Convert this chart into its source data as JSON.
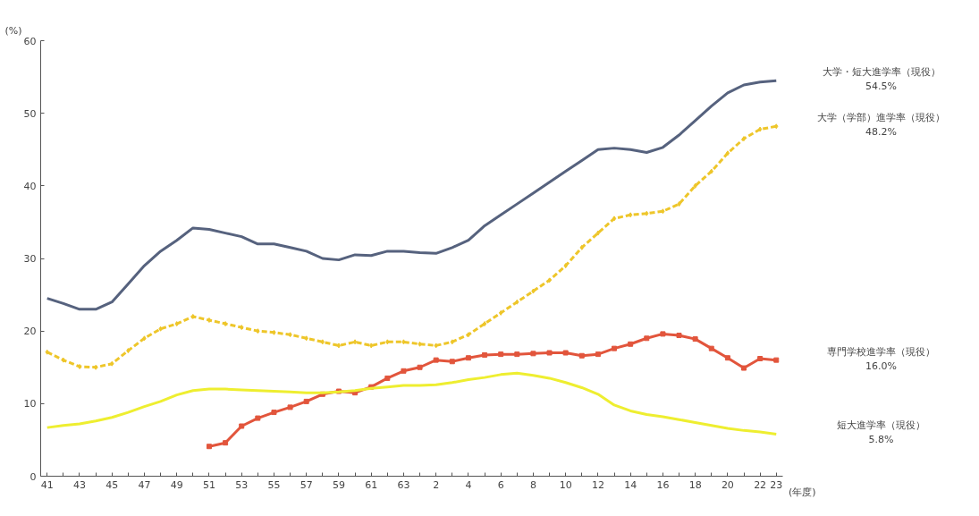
{
  "chart_data": {
    "type": "line",
    "ylabel": "(%)",
    "xlabel": "(年度)",
    "categories": [
      "41",
      null,
      "43",
      null,
      "45",
      null,
      "47",
      null,
      "49",
      null,
      "51",
      null,
      "53",
      null,
      "55",
      null,
      "57",
      null,
      "59",
      null,
      "61",
      null,
      "63",
      null,
      "2",
      null,
      "4",
      null,
      "6",
      null,
      "8",
      null,
      "10",
      null,
      "12",
      null,
      "14",
      null,
      "16",
      null,
      "18",
      null,
      "20",
      null,
      "22",
      "23"
    ],
    "series": [
      {
        "name": "大学・短大進学率（現役）",
        "color": "#56627e",
        "marker": "none",
        "line_style": "solid",
        "values": [
          24.5,
          23.8,
          23.0,
          23.0,
          24.0,
          26.5,
          29.0,
          31.0,
          32.5,
          34.2,
          34.0,
          33.5,
          33.0,
          32.0,
          32.0,
          31.5,
          31.0,
          30.0,
          29.8,
          30.5,
          30.4,
          31.0,
          31.0,
          30.8,
          30.7,
          31.5,
          32.5,
          34.5,
          36.0,
          37.5,
          39.0,
          40.5,
          42.0,
          43.5,
          45.0,
          45.2,
          45.0,
          44.6,
          45.3,
          47.0,
          49.0,
          51.0,
          52.8,
          53.9,
          54.3,
          54.5
        ]
      },
      {
        "name": "大学（学部）進学率（現役）",
        "color": "#eec62a",
        "marker": "diamond",
        "line_style": "dashed",
        "values": [
          17.1,
          16.0,
          15.1,
          15.0,
          15.5,
          17.3,
          19.0,
          20.3,
          21.0,
          22.0,
          21.5,
          21.0,
          20.5,
          20.0,
          19.8,
          19.5,
          19.0,
          18.5,
          18.0,
          18.5,
          18.0,
          18.5,
          18.5,
          18.2,
          18.0,
          18.5,
          19.5,
          21.0,
          22.5,
          24.0,
          25.5,
          27.0,
          29.0,
          31.5,
          33.5,
          35.5,
          36.0,
          36.2,
          36.5,
          37.5,
          40.0,
          42.0,
          44.5,
          46.5,
          47.8,
          48.2
        ]
      },
      {
        "name": "専門学校進学率（現役）",
        "color": "#e2553c",
        "marker": "square",
        "line_style": "solid",
        "values": [
          null,
          null,
          null,
          null,
          null,
          null,
          null,
          null,
          null,
          null,
          4.1,
          4.6,
          6.9,
          8.0,
          8.8,
          9.5,
          10.3,
          11.3,
          11.7,
          11.5,
          12.3,
          13.5,
          14.5,
          15.0,
          16.0,
          15.8,
          16.3,
          16.7,
          16.8,
          16.8,
          16.9,
          17.0,
          17.0,
          16.6,
          16.8,
          17.6,
          18.2,
          19.0,
          19.6,
          19.4,
          18.9,
          17.6,
          16.3,
          14.9,
          16.2,
          16.0
        ]
      },
      {
        "name": "短大進学率（現役）",
        "color": "#eeee30",
        "marker": "none",
        "line_style": "solid",
        "values": [
          6.7,
          7.0,
          7.2,
          7.6,
          8.1,
          8.8,
          9.6,
          10.3,
          11.2,
          11.8,
          12.0,
          12.0,
          11.9,
          11.8,
          11.7,
          11.6,
          11.5,
          11.5,
          11.6,
          11.8,
          12.1,
          12.3,
          12.5,
          12.5,
          12.6,
          12.9,
          13.3,
          13.6,
          14.0,
          14.2,
          13.9,
          13.5,
          12.9,
          12.2,
          11.3,
          9.8,
          9.0,
          8.5,
          8.2,
          7.8,
          7.4,
          7.0,
          6.6,
          6.3,
          6.1,
          5.8
        ]
      }
    ],
    "annotations": [
      "54.5%",
      "48.2%",
      "16.0%",
      "5.8%"
    ],
    "ylim": [
      0,
      60
    ],
    "yticks": [
      0,
      10,
      20,
      30,
      40,
      50,
      60
    ],
    "grid": false
  }
}
